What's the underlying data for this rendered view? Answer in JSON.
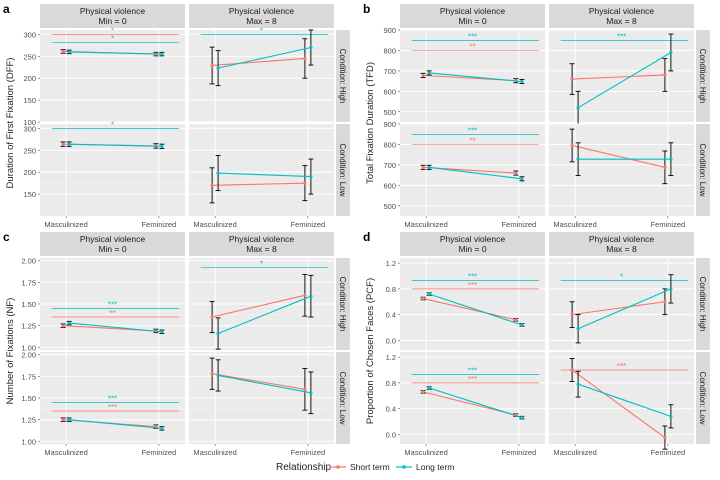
{
  "legend": {
    "title": "Relationship",
    "items": [
      {
        "name": "Short term",
        "color": "#F8766D"
      },
      {
        "name": "Long term",
        "color": "#00BFC4"
      }
    ]
  },
  "colors": {
    "panel_bg": "#EBEBEB",
    "strip_bg": "#D9D9D9",
    "grid_major": "#FFFFFF",
    "grid_minor": "#F4F4F4",
    "short": "#F8766D",
    "long": "#00BFC4",
    "error_bar": "#000000"
  },
  "strips": {
    "col1": [
      "Physical violence",
      "Min = 0"
    ],
    "col2": [
      "Physical violence",
      "Max = 8"
    ],
    "row_high": "Condition: High",
    "row_low": "Condition: Low"
  },
  "chart_data": [
    {
      "tag": "a",
      "type": "line",
      "ylabel": "Duration of First Fixation (DFF)",
      "categories": [
        "Masculinized",
        "Feminized"
      ],
      "ylim": [
        100,
        310
      ],
      "yticks": [
        100,
        150,
        200,
        250,
        300
      ],
      "yticks_low": [
        150,
        200,
        250,
        300
      ],
      "panels": {
        "high_min": {
          "short": {
            "values": [
              261,
              255
            ],
            "errors": [
              4,
              4
            ]
          },
          "long": {
            "values": [
              260,
              255
            ],
            "errors": [
              4,
              4
            ]
          },
          "sig": [
            {
              "label": "*",
              "series": "short",
              "y": 300
            },
            {
              "label": "*",
              "series": "long",
              "y": 281
            }
          ]
        },
        "high_max": {
          "short": {
            "values": [
              229,
              245
            ],
            "errors": [
              42,
              45
            ]
          },
          "long": {
            "values": [
              223,
              270
            ],
            "errors": [
              40,
              40
            ]
          },
          "sig": [
            {
              "label": "*",
              "series": "long",
              "y": 300
            }
          ]
        },
        "low_min": {
          "short": {
            "values": [
              264,
              260
            ],
            "errors": [
              5,
              5
            ]
          },
          "long": {
            "values": [
              264,
              259
            ],
            "errors": [
              5,
              5
            ]
          },
          "sig": [
            {
              "label": "*",
              "series": "long",
              "y": 300
            }
          ]
        },
        "low_max": {
          "short": {
            "values": [
              170,
              175
            ],
            "errors": [
              40,
              40
            ]
          },
          "long": {
            "values": [
              198,
              190
            ],
            "errors": [
              40,
              40
            ]
          },
          "sig": []
        }
      }
    },
    {
      "tag": "b",
      "type": "line",
      "ylabel": "Total Fixation Duration (TFD)",
      "categories": [
        "Masculinized",
        "Feminized"
      ],
      "ylim": [
        450,
        900
      ],
      "yticks": [
        500,
        600,
        700,
        800,
        900
      ],
      "yticks_low": [
        500,
        600,
        700,
        800,
        900
      ],
      "panels": {
        "high_min": {
          "short": {
            "values": [
              678,
              652
            ],
            "errors": [
              10,
              10
            ]
          },
          "long": {
            "values": [
              690,
              648
            ],
            "errors": [
              10,
              10
            ]
          },
          "sig": [
            {
              "label": "**",
              "series": "short",
              "y": 800
            },
            {
              "label": "***",
              "series": "long",
              "y": 848
            }
          ]
        },
        "high_max": {
          "short": {
            "values": [
              660,
              680
            ],
            "errors": [
              75,
              80
            ]
          },
          "long": {
            "values": [
              520,
              790
            ],
            "errors": [
              80,
              90
            ]
          },
          "sig": [
            {
              "label": "***",
              "series": "long",
              "y": 848
            }
          ]
        },
        "low_min": {
          "short": {
            "values": [
              688,
              660
            ],
            "errors": [
              10,
              10
            ]
          },
          "long": {
            "values": [
              688,
              632
            ],
            "errors": [
              10,
              10
            ]
          },
          "sig": [
            {
              "label": "**",
              "series": "short",
              "y": 800
            },
            {
              "label": "***",
              "series": "long",
              "y": 848
            }
          ]
        },
        "low_max": {
          "short": {
            "values": [
              795,
              688
            ],
            "errors": [
              80,
              80
            ]
          },
          "long": {
            "values": [
              728,
              728
            ],
            "errors": [
              80,
              80
            ]
          },
          "sig": []
        }
      }
    },
    {
      "tag": "c",
      "type": "line",
      "ylabel": "Number of Fixations (NF)",
      "categories": [
        "Masculinized",
        "Feminized"
      ],
      "ylim": [
        0.97,
        2.03
      ],
      "yticks": [
        1.0,
        1.25,
        1.5,
        1.75,
        2.0
      ],
      "yticks_low": [
        1.0,
        1.25,
        1.5,
        1.75,
        2.0
      ],
      "panels": {
        "high_min": {
          "short": {
            "values": [
              1.25,
              1.19
            ],
            "errors": [
              0.02,
              0.02
            ]
          },
          "long": {
            "values": [
              1.28,
              1.18
            ],
            "errors": [
              0.02,
              0.02
            ]
          },
          "sig": [
            {
              "label": "**",
              "series": "short",
              "y": 1.35
            },
            {
              "label": "***",
              "series": "long",
              "y": 1.45
            }
          ]
        },
        "high_max": {
          "short": {
            "values": [
              1.35,
              1.6
            ],
            "errors": [
              0.18,
              0.24
            ]
          },
          "long": {
            "values": [
              1.16,
              1.59
            ],
            "errors": [
              0.18,
              0.24
            ]
          },
          "sig": [
            {
              "label": "*",
              "series": "long",
              "y": 1.92
            }
          ]
        },
        "low_min": {
          "short": {
            "values": [
              1.25,
              1.17
            ],
            "errors": [
              0.02,
              0.02
            ]
          },
          "long": {
            "values": [
              1.25,
              1.15
            ],
            "errors": [
              0.02,
              0.02
            ]
          },
          "sig": [
            {
              "label": "***",
              "series": "short",
              "y": 1.35
            },
            {
              "label": "***",
              "series": "long",
              "y": 1.45
            }
          ]
        },
        "low_max": {
          "short": {
            "values": [
              1.78,
              1.6
            ],
            "errors": [
              0.18,
              0.24
            ]
          },
          "long": {
            "values": [
              1.76,
              1.56
            ],
            "errors": [
              0.18,
              0.24
            ]
          },
          "sig": []
        }
      }
    },
    {
      "tag": "d",
      "type": "line",
      "ylabel": "Proportion of Chosen Faces (PCF)",
      "categories": [
        "Masculinized",
        "Feminized"
      ],
      "ylim": [
        -0.15,
        1.28
      ],
      "yticks": [
        0.0,
        0.4,
        0.8,
        1.2
      ],
      "yticks_low": [
        0.0,
        0.4,
        0.8,
        1.2
      ],
      "panels": {
        "high_min": {
          "short": {
            "values": [
              0.65,
              0.32
            ],
            "errors": [
              0.02,
              0.02
            ]
          },
          "long": {
            "values": [
              0.72,
              0.24
            ],
            "errors": [
              0.02,
              0.02
            ]
          },
          "sig": [
            {
              "label": "***",
              "series": "short",
              "y": 0.8
            },
            {
              "label": "***",
              "series": "long",
              "y": 0.93
            }
          ]
        },
        "high_max": {
          "short": {
            "values": [
              0.4,
              0.6
            ],
            "errors": [
              0.2,
              0.2
            ]
          },
          "long": {
            "values": [
              0.18,
              0.8
            ],
            "errors": [
              0.22,
              0.22
            ]
          },
          "sig": [
            {
              "label": "*",
              "series": "long",
              "y": 0.93
            }
          ]
        },
        "low_min": {
          "short": {
            "values": [
              0.66,
              0.3
            ],
            "errors": [
              0.02,
              0.02
            ]
          },
          "long": {
            "values": [
              0.72,
              0.26
            ],
            "errors": [
              0.02,
              0.02
            ]
          },
          "sig": [
            {
              "label": "***",
              "series": "short",
              "y": 0.8
            },
            {
              "label": "***",
              "series": "long",
              "y": 0.93
            }
          ]
        },
        "low_max": {
          "short": {
            "values": [
              1.0,
              -0.05
            ],
            "errors": [
              0.18,
              0.18
            ]
          },
          "long": {
            "values": [
              0.78,
              0.28
            ],
            "errors": [
              0.2,
              0.18
            ]
          },
          "sig": [
            {
              "label": "***",
              "series": "short",
              "y": 1.0
            }
          ]
        }
      }
    }
  ]
}
